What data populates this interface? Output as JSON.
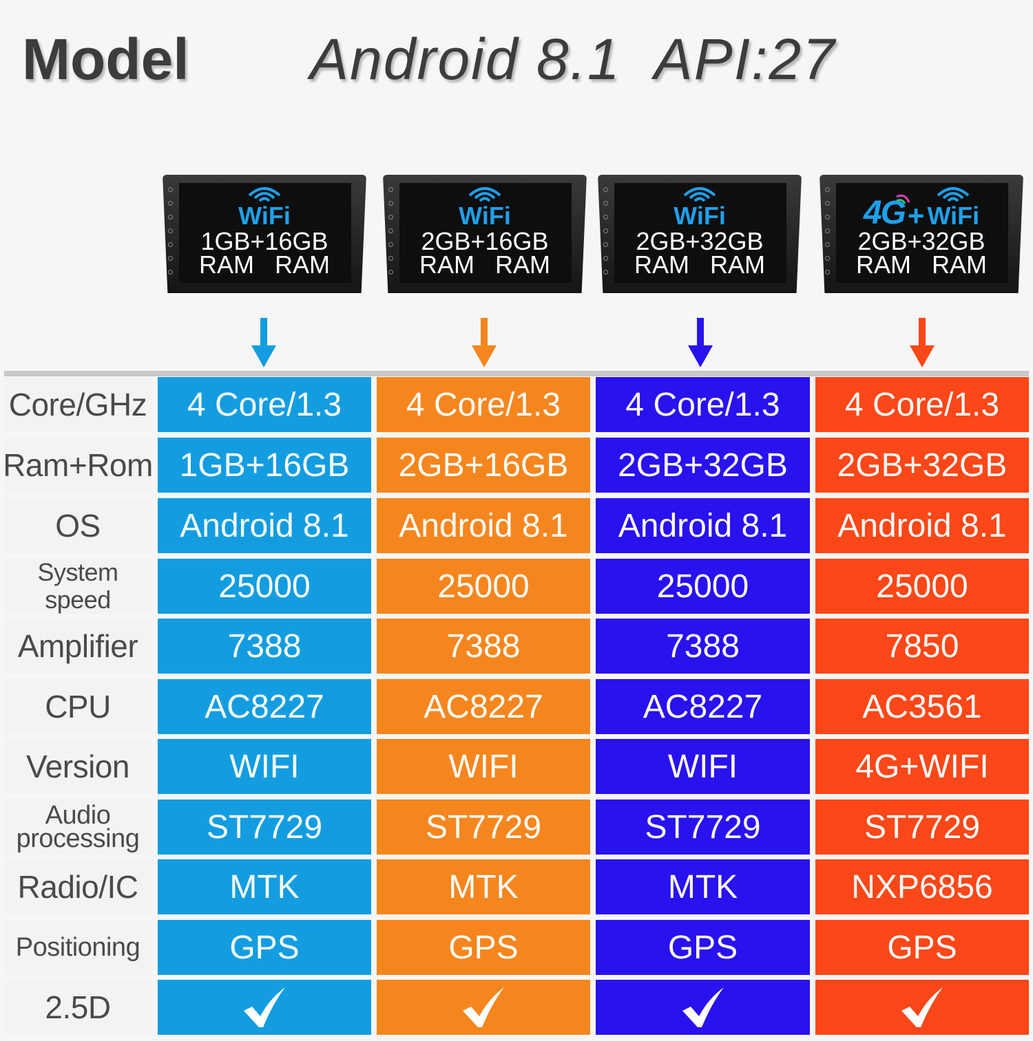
{
  "header": {
    "model_label": "Model",
    "android_label": "Android 8.1",
    "api_label": "API:27"
  },
  "devices": [
    {
      "logo": "WiFi",
      "spec": "1GB+16GB",
      "ram_a": "RAM",
      "ram_b": "RAM"
    },
    {
      "logo": "WiFi",
      "spec": "2GB+16GB",
      "ram_a": "RAM",
      "ram_b": "RAM"
    },
    {
      "logo": "WiFi",
      "spec": "2GB+32GB",
      "ram_a": "RAM",
      "ram_b": "RAM"
    },
    {
      "logo_4g": "4G",
      "logo_plus": "+",
      "logo": "WiFi",
      "spec": "2GB+32GB",
      "ram_a": "RAM",
      "ram_b": "RAM"
    }
  ],
  "colors": {
    "col1": "#139de0",
    "col2": "#f5861e",
    "col3": "#2812ee",
    "col4": "#fc4718"
  },
  "table": {
    "rows": [
      {
        "label": "Core/GHz",
        "values": [
          "4 Core/1.3",
          "4 Core/1.3",
          "4 Core/1.3",
          "4 Core/1.3"
        ]
      },
      {
        "label": "Ram+Rom",
        "values": [
          "1GB+16GB",
          "2GB+16GB",
          "2GB+32GB",
          "2GB+32GB"
        ]
      },
      {
        "label": "OS",
        "values": [
          "Android 8.1",
          "Android 8.1",
          "Android 8.1",
          "Android 8.1"
        ]
      },
      {
        "label": "System speed",
        "values": [
          "25000",
          "25000",
          "25000",
          "25000"
        ]
      },
      {
        "label": "Amplifier",
        "values": [
          "7388",
          "7388",
          "7388",
          "7850"
        ]
      },
      {
        "label": "CPU",
        "values": [
          "AC8227",
          "AC8227",
          "AC8227",
          "AC3561"
        ]
      },
      {
        "label": "Version",
        "values": [
          "WIFI",
          "WIFI",
          "WIFI",
          "4G+WIFI"
        ]
      },
      {
        "label": "Audio processing",
        "values": [
          "ST7729",
          "ST7729",
          "ST7729",
          "ST7729"
        ]
      },
      {
        "label": "Radio/IC",
        "values": [
          "MTK",
          "MTK",
          "MTK",
          "NXP6856"
        ]
      },
      {
        "label": "Positioning",
        "values": [
          "GPS",
          "GPS",
          "GPS",
          "GPS"
        ]
      },
      {
        "label": "2.5D",
        "values": [
          "check-icon",
          "check-icon",
          "check-icon",
          "check-icon"
        ]
      }
    ]
  }
}
